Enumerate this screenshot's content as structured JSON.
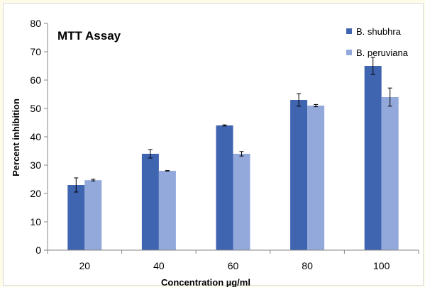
{
  "chart_data": {
    "type": "bar",
    "title": "MTT Assay",
    "xlabel": "Concentration µg/ml",
    "ylabel": "Percent inhibition",
    "categories": [
      "20",
      "40",
      "60",
      "80",
      "100"
    ],
    "ylim": [
      0,
      80
    ],
    "yticks": [
      0,
      10,
      20,
      30,
      40,
      50,
      60,
      70,
      80
    ],
    "grid": false,
    "legend_position": "top-right",
    "series": [
      {
        "name": "B. shubhra",
        "color": "#3f64b0",
        "values": [
          23,
          34,
          44,
          53,
          65
        ],
        "errors": [
          2.5,
          1.5,
          0.2,
          2.2,
          3.0
        ]
      },
      {
        "name": "B. peruviana",
        "color": "#93a9dc",
        "values": [
          24.7,
          28,
          34,
          51,
          54
        ],
        "errors": [
          0.3,
          0.1,
          0.8,
          0.4,
          3.2
        ]
      }
    ]
  }
}
